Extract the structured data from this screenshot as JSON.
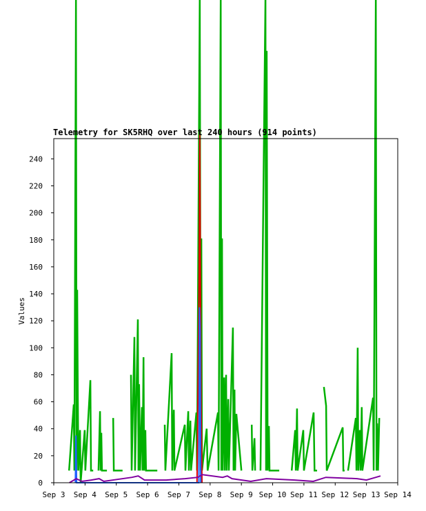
{
  "chart_data": {
    "type": "line",
    "title": "Telemetry for SK5RHQ over last 240 hours (914 points)",
    "y_label": "Values",
    "xlim": [
      3,
      14
    ],
    "xticks": [
      {
        "value": 3,
        "label": "Sep 3"
      },
      {
        "value": 4,
        "label": "Sep 4"
      },
      {
        "value": 5,
        "label": "Sep 5"
      },
      {
        "value": 6,
        "label": "Sep 6"
      },
      {
        "value": 7,
        "label": "Sep 7"
      },
      {
        "value": 8,
        "label": "Sep 8"
      },
      {
        "value": 9,
        "label": "Sep 9"
      },
      {
        "value": 10,
        "label": "Sep 10"
      },
      {
        "value": 11,
        "label": "Sep 11"
      },
      {
        "value": 12,
        "label": "Sep 12"
      },
      {
        "value": 13,
        "label": "Sep 13"
      },
      {
        "value": 14,
        "label": "Sep 14"
      }
    ],
    "ylim": [
      0,
      255
    ],
    "yticks": [
      0,
      20,
      40,
      60,
      80,
      100,
      120,
      140,
      160,
      180,
      200,
      220,
      240
    ],
    "series": [
      {
        "color": "#00b000",
        "x": [
          3.49,
          3.64,
          3.66,
          3.71,
          3.73,
          3.75,
          3.77,
          3.79,
          3.84,
          3.86,
          3.99,
          4.01,
          4.17,
          4.19,
          4.26,
          4.3,
          4.43,
          4.48,
          4.5,
          4.52,
          4.54,
          4.7,
          4.8,
          4.9,
          4.92,
          5.2,
          5.3,
          5.47,
          5.49,
          5.58,
          5.6,
          5.69,
          5.71,
          5.73,
          5.76,
          5.82,
          5.84,
          5.87,
          5.89,
          5.93,
          5.95,
          6.31,
          6.4,
          6.55,
          6.57,
          6.77,
          6.79,
          6.84,
          6.86,
          7.19,
          7.21,
          7.3,
          7.32,
          7.37,
          7.39,
          7.56,
          7.58,
          7.67,
          7.7,
          7.72,
          7.74,
          7.89,
          7.92,
          8.25,
          8.27,
          8.34,
          8.36,
          8.38,
          8.4,
          8.45,
          8.47,
          8.51,
          8.53,
          8.58,
          8.6,
          8.73,
          8.75,
          8.78,
          8.8,
          8.84,
          9.0,
          9.1,
          9.33,
          9.35,
          9.42,
          9.44,
          9.5,
          9.61,
          9.77,
          9.79,
          9.81,
          9.84,
          9.88,
          9.9,
          10.21,
          10.4,
          10.61,
          10.72,
          10.74,
          10.78,
          10.8,
          10.98,
          11.0,
          11.31,
          11.34,
          11.42,
          11.5,
          11.64,
          11.71,
          11.73,
          12.24,
          12.26,
          12.3,
          12.35,
          12.41,
          12.66,
          12.68,
          12.72,
          12.74,
          12.79,
          12.81,
          12.85,
          12.87,
          13.21,
          13.23,
          13.3,
          13.32,
          13.34,
          13.37,
          13.41
        ],
        "values": [
          9,
          58,
          9,
          360,
          9,
          143,
          63,
          9,
          39,
          0,
          39,
          9,
          76,
          9,
          9,
          null,
          9,
          53,
          9,
          37,
          9,
          9,
          null,
          48,
          9,
          9,
          null,
          80,
          9,
          108,
          9,
          121,
          9,
          73,
          9,
          56,
          9,
          93,
          9,
          39,
          9,
          9,
          null,
          43,
          9,
          96,
          9,
          54,
          9,
          43,
          9,
          53,
          9,
          46,
          9,
          52,
          9,
          360,
          9,
          181,
          9,
          40,
          9,
          52,
          9,
          360,
          9,
          181,
          9,
          78,
          9,
          80,
          9,
          62,
          9,
          115,
          9,
          69,
          9,
          51,
          9,
          null,
          43,
          9,
          33,
          9,
          null,
          9,
          360,
          9,
          320,
          9,
          42,
          9,
          9,
          null,
          9,
          39,
          9,
          55,
          9,
          39,
          9,
          52,
          9,
          9,
          null,
          71,
          57,
          9,
          41,
          9,
          9,
          null,
          9,
          48,
          9,
          100,
          9,
          39,
          9,
          56,
          9,
          63,
          9,
          360,
          9,
          44,
          9,
          48
        ]
      },
      {
        "color": "#e00000",
        "x": [
          7.58,
          7.62,
          7.65,
          7.67,
          7.69,
          7.71,
          7.74
        ],
        "values": [
          0,
          88,
          155,
          260,
          140,
          60,
          0
        ]
      },
      {
        "color": "#2060ff",
        "x": [
          3.69,
          3.71,
          3.73,
          7.64,
          7.66,
          7.68,
          7.7
        ],
        "values": [
          0,
          35,
          0,
          0,
          130,
          112,
          0
        ]
      },
      {
        "color": "#8000a0",
        "x": [
          3.5,
          3.72,
          3.9,
          4.2,
          4.45,
          4.6,
          5.5,
          5.7,
          5.9,
          6.6,
          7.2,
          7.6,
          7.75,
          8.4,
          8.55,
          8.7,
          9.3,
          9.8,
          10.7,
          11.3,
          11.7,
          12.7,
          13.0,
          13.3,
          13.45
        ],
        "values": [
          0,
          3,
          1,
          2,
          3,
          1,
          4,
          5,
          2,
          2,
          3,
          4,
          6,
          4,
          5,
          3,
          1,
          3,
          2,
          1,
          4,
          3,
          2,
          4,
          5
        ]
      }
    ]
  }
}
